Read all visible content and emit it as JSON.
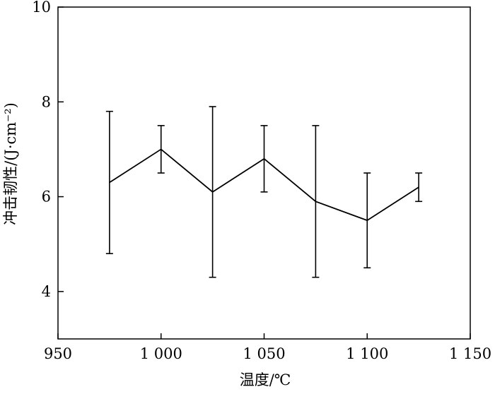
{
  "chart_data": {
    "type": "line",
    "title": "",
    "xlabel": "温度/℃",
    "ylabel": "冲击韧性/(J·cm⁻²)",
    "xlim": [
      950,
      1150
    ],
    "ylim": [
      3,
      10
    ],
    "x_ticks": [
      950,
      1000,
      1050,
      1100,
      1150
    ],
    "x_tick_labels": [
      "950",
      "1 000",
      "1 050",
      "1 100",
      "1 150"
    ],
    "y_ticks": [
      4,
      6,
      8,
      10
    ],
    "y_tick_labels": [
      "4",
      "6",
      "8",
      "10"
    ],
    "grid": false,
    "legend": "none",
    "series": [
      {
        "x": [
          975,
          1000,
          1025,
          1050,
          1075,
          1100,
          1125
        ],
        "y": [
          6.3,
          7.0,
          6.1,
          6.8,
          5.9,
          5.5,
          6.2
        ],
        "y_lower": [
          4.8,
          6.5,
          4.3,
          6.1,
          4.3,
          4.5,
          5.9
        ],
        "y_upper": [
          7.8,
          7.5,
          7.9,
          7.5,
          7.5,
          6.5,
          6.5
        ],
        "color": "#000000"
      }
    ]
  }
}
